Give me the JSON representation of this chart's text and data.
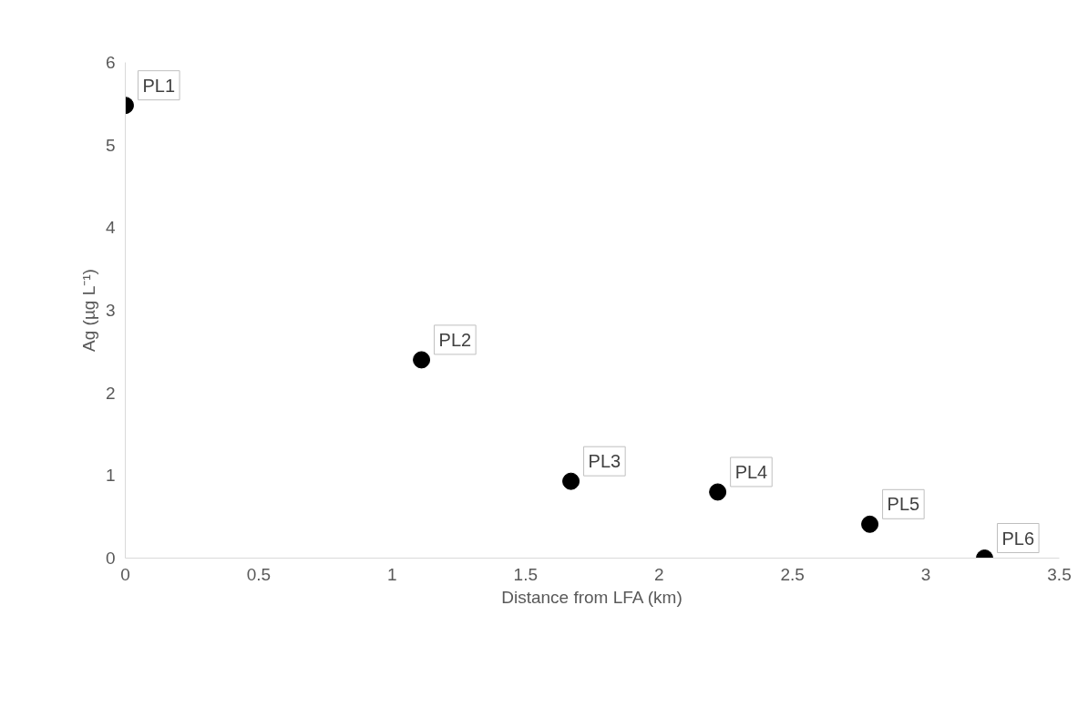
{
  "chart_data": {
    "type": "scatter",
    "xlabel": "Distance from LFA (km)",
    "ylabel": "Ag (µg L⁻¹)",
    "x": [
      0,
      1.11,
      1.67,
      2.22,
      2.79,
      3.22
    ],
    "series": [
      {
        "color": "#000000",
        "values": [
          5.48,
          2.4,
          0.93,
          0.8,
          0.41,
          0
        ]
      }
    ],
    "xlim": [
      0,
      3.5
    ],
    "xticks": [
      0,
      0.5,
      1,
      1.5,
      2,
      2.5,
      3,
      3.5
    ],
    "ylim": [
      0,
      6
    ],
    "yticks": [
      0,
      1,
      2,
      3,
      4,
      5,
      6
    ],
    "grid": false,
    "marker": "circle",
    "annotations": [
      {
        "text": "PL1",
        "x": 0,
        "y": 5.48
      },
      {
        "text": "PL2",
        "x": 1.11,
        "y": 2.4
      },
      {
        "text": "PL3",
        "x": 1.67,
        "y": 0.93
      },
      {
        "text": "PL4",
        "x": 2.22,
        "y": 0.8
      },
      {
        "text": "PL5",
        "x": 2.79,
        "y": 0.41
      },
      {
        "text": "PL6",
        "x": 3.22,
        "y": 0
      }
    ]
  }
}
